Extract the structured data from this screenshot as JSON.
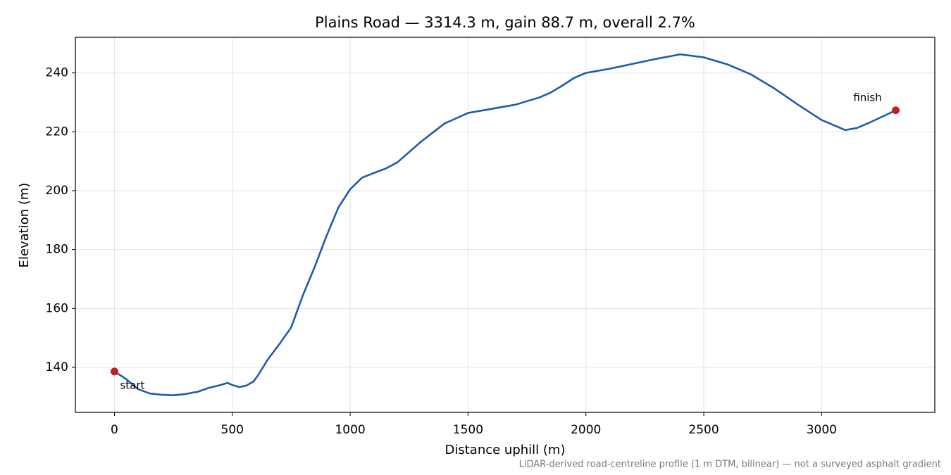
{
  "chart_data": {
    "type": "line",
    "title": "Plains Road — 3314.3 m, gain 88.7 m, overall 2.7%",
    "xlabel": "Distance uphill (m)",
    "ylabel": "Elevation (m)",
    "note": "LiDAR-derived road-centreline profile (1 m DTM, bilinear) — not a surveyed asphalt gradient",
    "color": "#1f5bac",
    "x": [
      0,
      50,
      100,
      150,
      200,
      250,
      300,
      330,
      350,
      400,
      450,
      480,
      500,
      530,
      560,
      590,
      610,
      650,
      700,
      750,
      800,
      850,
      900,
      950,
      1000,
      1050,
      1100,
      1150,
      1200,
      1300,
      1400,
      1500,
      1600,
      1700,
      1800,
      1850,
      1900,
      1950,
      2000,
      2100,
      2200,
      2300,
      2400,
      2500,
      2600,
      2700,
      2800,
      2900,
      3000,
      3100,
      3150,
      3200,
      3314.3
    ],
    "values": [
      138.6,
      136,
      132.6,
      131.1,
      130.7,
      130.5,
      130.9,
      131.4,
      131.6,
      133,
      134,
      134.7,
      134,
      133.3,
      133.8,
      135.2,
      137.4,
      142.6,
      147.9,
      153.6,
      164.6,
      174.2,
      184.7,
      194.3,
      200.5,
      204.4,
      206,
      207.5,
      209.6,
      216.6,
      222.8,
      226.4,
      227.8,
      229.2,
      231.6,
      233.3,
      235.7,
      238.3,
      240,
      241.4,
      243.1,
      244.8,
      246.3,
      245.3,
      242.9,
      239.5,
      234.7,
      229.2,
      224,
      220.6,
      221.3,
      223,
      227.3
    ],
    "endpoints": {
      "x": [
        0,
        3314.3
      ],
      "values": [
        138.6,
        227.3
      ],
      "labels": [
        "start",
        "finish"
      ],
      "color": "#c0202a"
    },
    "xlim": [
      -165.7,
      3480.0
    ],
    "ylim": [
      124.7,
      252.1
    ],
    "xticks": [
      0,
      500,
      1000,
      1500,
      2000,
      2500,
      3000
    ],
    "yticks": [
      140,
      160,
      180,
      200,
      220,
      240
    ],
    "grid": true
  }
}
